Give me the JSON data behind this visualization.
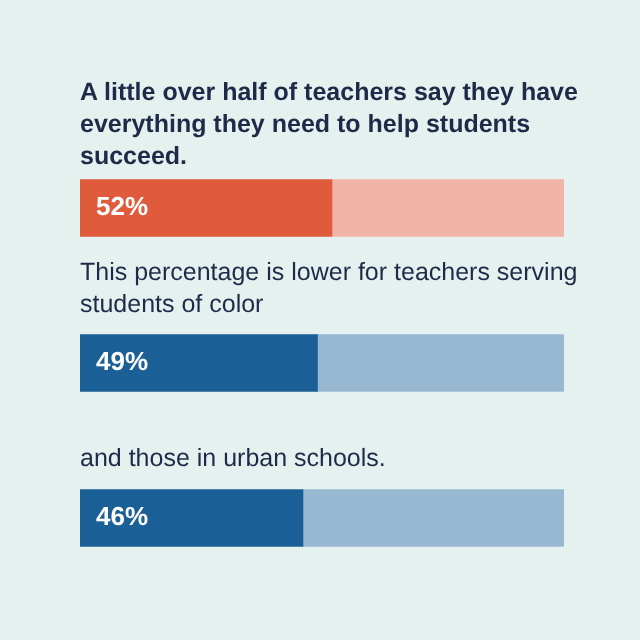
{
  "chart_data": {
    "type": "bar",
    "orientation": "horizontal",
    "stacked": true,
    "title": "A little over half of teachers say they have everything they need to help students succeed.",
    "annotations": [
      "This percentage is lower for teachers serving students of color",
      "and those in urban schools."
    ],
    "categories": [
      null,
      null,
      null
    ],
    "series": [
      {
        "values": [
          52,
          49,
          46
        ],
        "colors": [
          "#e05a3c",
          "#1b5f97",
          "#1b5f97"
        ],
        "value_labels": [
          "52%",
          "49%",
          "46%"
        ]
      },
      {
        "values": [
          48,
          51,
          54
        ],
        "colors": [
          "#f1b5a7",
          "#98b7d0",
          "#98b7d0"
        ]
      }
    ],
    "xlim": [
      0,
      100
    ],
    "tick_labels": false
  }
}
